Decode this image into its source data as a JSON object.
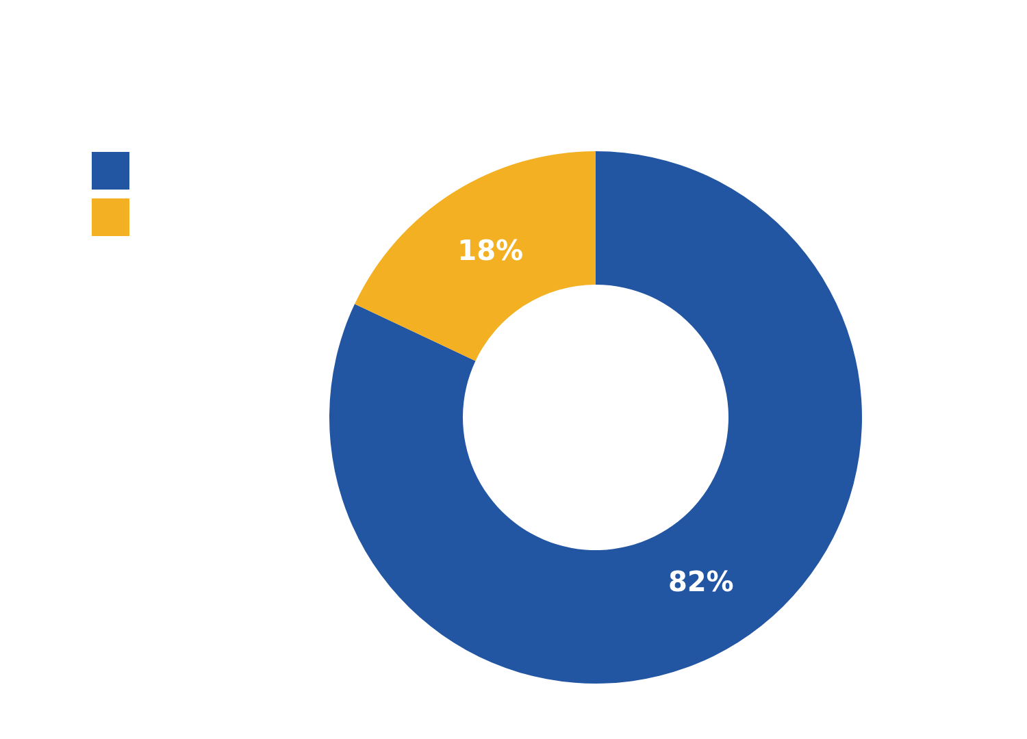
{
  "chart_data": {
    "type": "donut",
    "categories": [
      null,
      null
    ],
    "values": [
      82,
      18
    ],
    "colors": [
      "#2255a2",
      "#f2b022"
    ],
    "value_labels": [
      "82%",
      "18%"
    ]
  }
}
